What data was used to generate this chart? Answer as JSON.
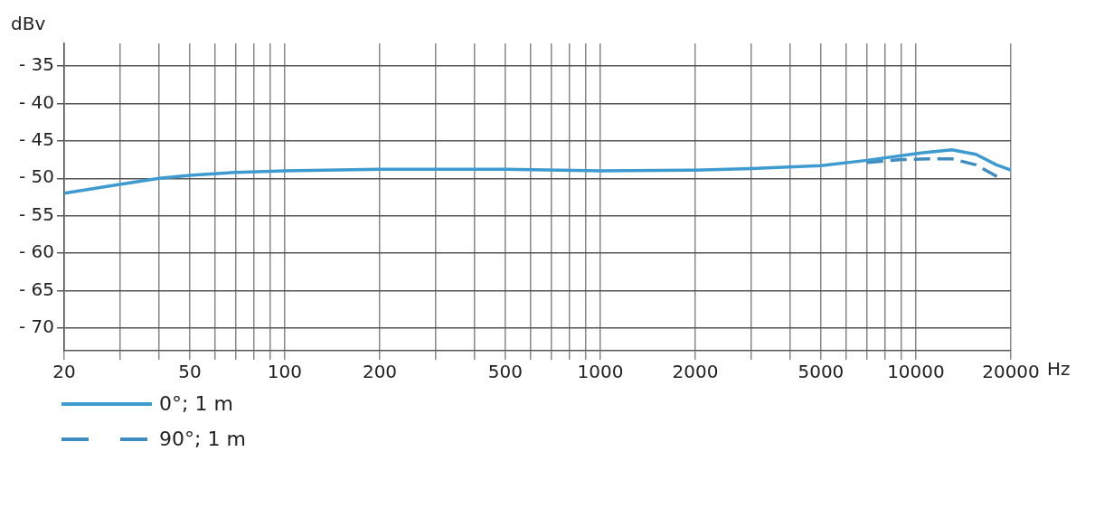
{
  "chart_data": {
    "type": "line",
    "ylabel": "dBv",
    "xlabel": "Hz",
    "log": "x",
    "grid": true,
    "legend": "bottom left",
    "marker": "none",
    "xlim": [
      20,
      20000
    ],
    "ylim": [
      -73,
      -32
    ],
    "xticks": [
      20,
      {
        "value": 30,
        "label": null
      },
      {
        "value": 40,
        "label": null
      },
      50,
      {
        "value": 60,
        "label": null
      },
      {
        "value": 70,
        "label": null
      },
      {
        "value": 80,
        "label": null
      },
      {
        "value": 90,
        "label": null
      },
      100,
      200,
      {
        "value": 300,
        "label": null
      },
      {
        "value": 400,
        "label": null
      },
      500,
      {
        "value": 600,
        "label": null
      },
      {
        "value": 700,
        "label": null
      },
      {
        "value": 800,
        "label": null
      },
      {
        "value": 900,
        "label": null
      },
      1000,
      2000,
      {
        "value": 3000,
        "label": null
      },
      {
        "value": 4000,
        "label": null
      },
      5000,
      {
        "value": 6000,
        "label": null
      },
      {
        "value": 7000,
        "label": null
      },
      {
        "value": 8000,
        "label": null
      },
      {
        "value": 9000,
        "label": null
      },
      10000,
      20000
    ],
    "yticks": [
      {
        "value": -35,
        "label": "- 35"
      },
      {
        "value": -40,
        "label": "- 40"
      },
      {
        "value": -45,
        "label": "- 45"
      },
      {
        "value": -50,
        "label": "- 50"
      },
      {
        "value": -55,
        "label": "- 55"
      },
      {
        "value": -60,
        "label": "- 60"
      },
      {
        "value": -65,
        "label": "- 65"
      },
      {
        "value": -70,
        "label": "- 70"
      }
    ],
    "series": [
      {
        "name": "0°; 1 m",
        "color": "#3e9bd0",
        "line_style": "solid",
        "x": [
          20,
          30,
          40,
          50,
          70,
          100,
          200,
          500,
          1000,
          2000,
          3000,
          5000,
          7000,
          10000,
          13000,
          15500,
          18000,
          20000
        ],
        "values": [
          -52,
          -50.8,
          -50,
          -49.6,
          -49.2,
          -49,
          -48.8,
          -48.8,
          -49,
          -48.9,
          -48.7,
          -48.3,
          -47.6,
          -46.7,
          -46.2,
          -46.8,
          -48.2,
          -48.9
        ]
      },
      {
        "name": "90°; 1 m",
        "color": "#3e8cc0",
        "line_style": "dashed",
        "x": [
          7000,
          9000,
          11000,
          13000,
          15500,
          18300
        ],
        "values": [
          -47.9,
          -47.5,
          -47.4,
          -47.4,
          -48.2,
          -49.9
        ]
      }
    ]
  }
}
